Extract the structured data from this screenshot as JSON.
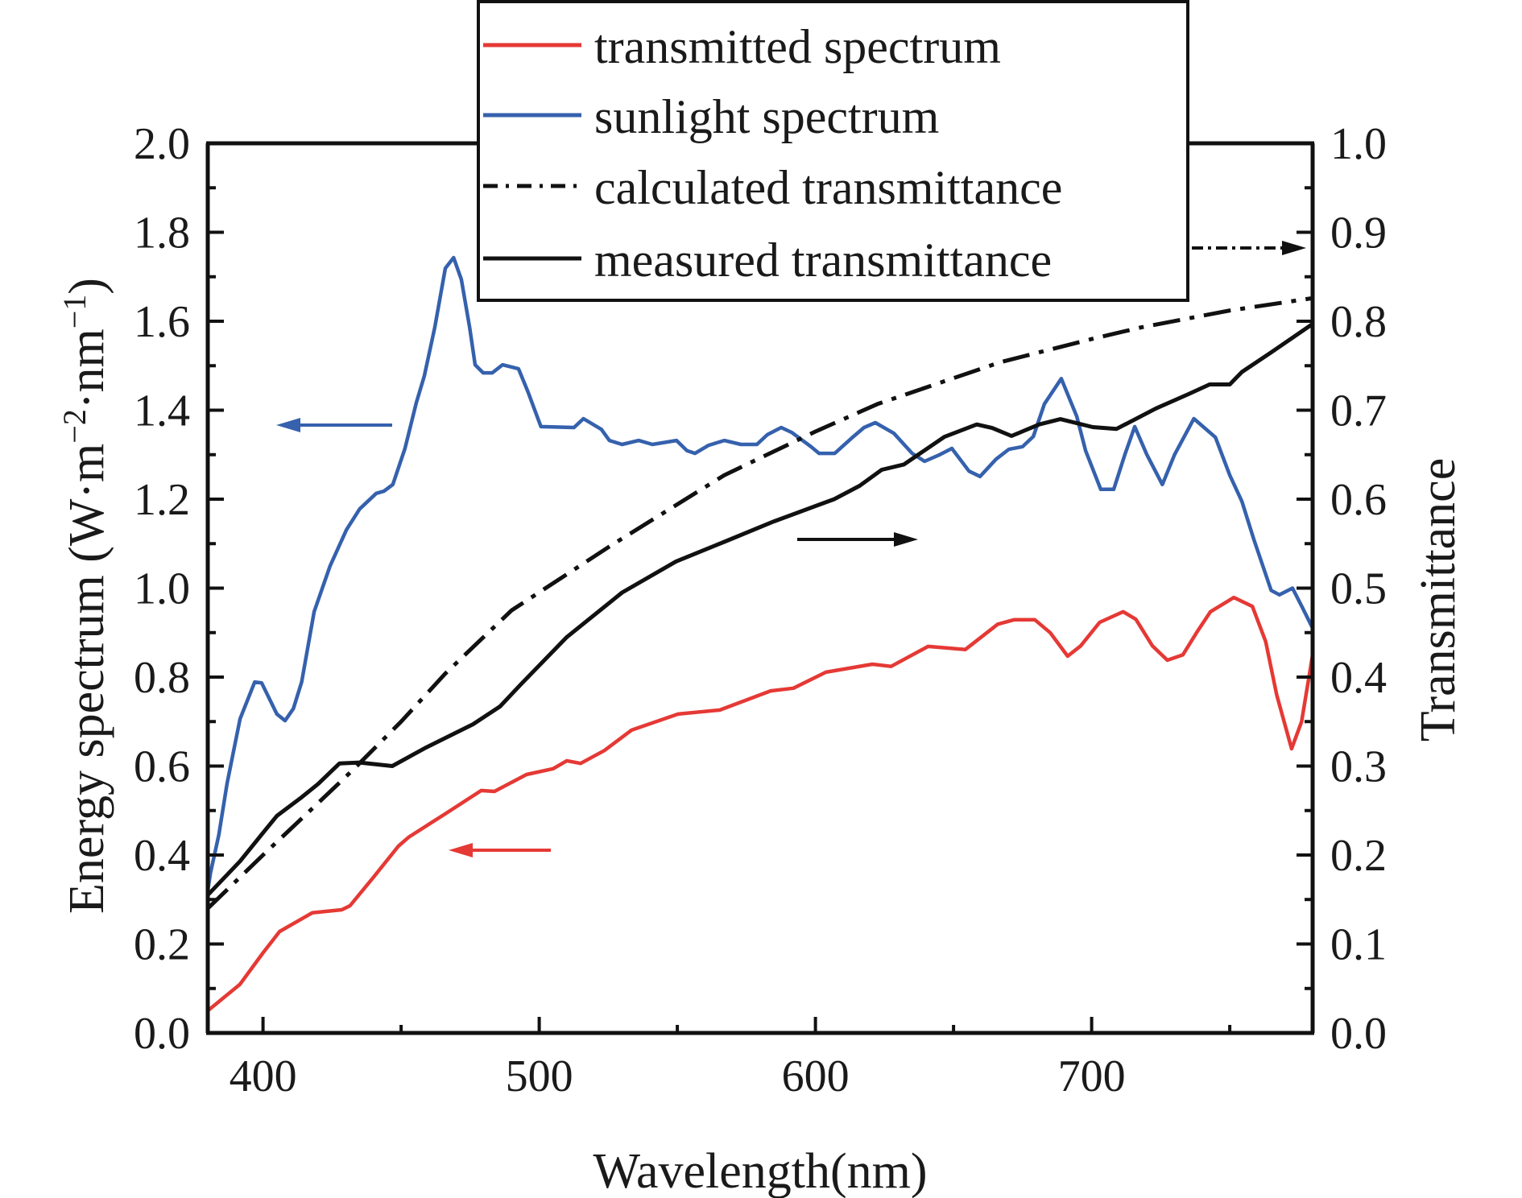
{
  "chart_data": {
    "type": "line",
    "title": "",
    "xlabel": "Wavelength(nm)",
    "ylabel_left": {
      "main": "Energy spectrum (W·m",
      "sup1": "−2",
      "mid": "·nm",
      "sup2": "−1",
      "end": ")"
    },
    "ylabel_right": "Transmittance",
    "xlim": [
      380,
      780
    ],
    "ylim_left": [
      0.0,
      2.0
    ],
    "ylim_right": [
      0.0,
      1.0
    ],
    "x_ticks": [
      400,
      500,
      600,
      700
    ],
    "x_minor_ticks": [
      450,
      550,
      650,
      750
    ],
    "y_left_ticks": [
      "0.0",
      "0.2",
      "0.4",
      "0.6",
      "0.8",
      "1.0",
      "1.2",
      "1.4",
      "1.6",
      "1.8",
      "2.0"
    ],
    "y_right_ticks": [
      "0.0",
      "0.1",
      "0.2",
      "0.3",
      "0.4",
      "0.5",
      "0.6",
      "0.7",
      "0.8",
      "0.9",
      "1.0"
    ],
    "grid": false,
    "legend_position": "top-center",
    "legend": [
      {
        "label": "transmitted spectrum",
        "color": "#e53935",
        "style": "solid"
      },
      {
        "label": "sunlight spectrum",
        "color": "#3561ad",
        "style": "solid"
      },
      {
        "label": "calculated transmittance",
        "color": "#111111",
        "style": "dash-dot"
      },
      {
        "label": "measured transmittance",
        "color": "#111111",
        "style": "solid"
      }
    ],
    "series": [
      {
        "name": "transmitted spectrum",
        "axis": "left",
        "color": "#e53935",
        "style": "solid",
        "points": [
          [
            380,
            0.05
          ],
          [
            391.6,
            0.109
          ],
          [
            400,
            0.18
          ],
          [
            406,
            0.228
          ],
          [
            417.8,
            0.27
          ],
          [
            428.5,
            0.277
          ],
          [
            431.5,
            0.286
          ],
          [
            440,
            0.35
          ],
          [
            449,
            0.42
          ],
          [
            452.7,
            0.44
          ],
          [
            466.3,
            0.494
          ],
          [
            479,
            0.545
          ],
          [
            483.8,
            0.543
          ],
          [
            495.4,
            0.581
          ],
          [
            505,
            0.594
          ],
          [
            510,
            0.612
          ],
          [
            515,
            0.606
          ],
          [
            523.6,
            0.635
          ],
          [
            533.5,
            0.681
          ],
          [
            550.3,
            0.717
          ],
          [
            565.4,
            0.726
          ],
          [
            583.8,
            0.769
          ],
          [
            592,
            0.775
          ],
          [
            603.8,
            0.811
          ],
          [
            620.6,
            0.829
          ],
          [
            627.4,
            0.824
          ],
          [
            640.8,
            0.869
          ],
          [
            654.3,
            0.862
          ],
          [
            666,
            0.919
          ],
          [
            672,
            0.929
          ],
          [
            679.4,
            0.929
          ],
          [
            685,
            0.9
          ],
          [
            691.3,
            0.847
          ],
          [
            696,
            0.87
          ],
          [
            702.9,
            0.923
          ],
          [
            711.4,
            0.947
          ],
          [
            716,
            0.93
          ],
          [
            722,
            0.87
          ],
          [
            727.4,
            0.838
          ],
          [
            733,
            0.85
          ],
          [
            738,
            0.9
          ],
          [
            743,
            0.947
          ],
          [
            751.5,
            0.979
          ],
          [
            758.2,
            0.959
          ],
          [
            763,
            0.88
          ],
          [
            767,
            0.76
          ],
          [
            772.4,
            0.639
          ],
          [
            776,
            0.7
          ],
          [
            780,
            0.85
          ]
        ]
      },
      {
        "name": "sunlight spectrum",
        "axis": "left",
        "color": "#3561ad",
        "style": "solid",
        "points": [
          [
            380,
            0.32
          ],
          [
            381,
            0.36
          ],
          [
            384,
            0.445
          ],
          [
            387,
            0.561
          ],
          [
            391.7,
            0.706
          ],
          [
            397,
            0.789
          ],
          [
            399.5,
            0.787
          ],
          [
            405,
            0.717
          ],
          [
            408,
            0.702
          ],
          [
            411,
            0.729
          ],
          [
            414,
            0.789
          ],
          [
            418.5,
            0.947
          ],
          [
            424.3,
            1.05
          ],
          [
            430.2,
            1.131
          ],
          [
            435,
            1.178
          ],
          [
            441,
            1.213
          ],
          [
            443.8,
            1.218
          ],
          [
            447,
            1.233
          ],
          [
            451.4,
            1.314
          ],
          [
            455.5,
            1.417
          ],
          [
            458.4,
            1.477
          ],
          [
            462.2,
            1.586
          ],
          [
            466,
            1.719
          ],
          [
            469,
            1.743
          ],
          [
            471.8,
            1.694
          ],
          [
            474.8,
            1.586
          ],
          [
            476.8,
            1.502
          ],
          [
            479.7,
            1.484
          ],
          [
            483,
            1.484
          ],
          [
            486.7,
            1.502
          ],
          [
            492.5,
            1.493
          ],
          [
            496,
            1.44
          ],
          [
            500.6,
            1.363
          ],
          [
            512.6,
            1.361
          ],
          [
            516,
            1.381
          ],
          [
            522.5,
            1.357
          ],
          [
            525.4,
            1.332
          ],
          [
            530,
            1.323
          ],
          [
            536,
            1.332
          ],
          [
            541,
            1.323
          ],
          [
            549.7,
            1.332
          ],
          [
            553.5,
            1.309
          ],
          [
            556.4,
            1.303
          ],
          [
            561.3,
            1.321
          ],
          [
            567,
            1.332
          ],
          [
            573,
            1.323
          ],
          [
            578.8,
            1.323
          ],
          [
            582.6,
            1.345
          ],
          [
            587.6,
            1.361
          ],
          [
            591.4,
            1.35
          ],
          [
            598.4,
            1.318
          ],
          [
            601.3,
            1.303
          ],
          [
            607,
            1.303
          ],
          [
            613.8,
            1.341
          ],
          [
            617.6,
            1.361
          ],
          [
            621.7,
            1.372
          ],
          [
            628.4,
            1.348
          ],
          [
            635,
            1.303
          ],
          [
            639.5,
            1.285
          ],
          [
            645,
            1.3
          ],
          [
            649.4,
            1.314
          ],
          [
            655.6,
            1.263
          ],
          [
            659.6,
            1.251
          ],
          [
            665.4,
            1.29
          ],
          [
            670,
            1.312
          ],
          [
            675,
            1.318
          ],
          [
            678.9,
            1.341
          ],
          [
            682.9,
            1.414
          ],
          [
            689,
            1.471
          ],
          [
            694.6,
            1.386
          ],
          [
            697.8,
            1.309
          ],
          [
            703.3,
            1.222
          ],
          [
            708,
            1.222
          ],
          [
            712,
            1.3
          ],
          [
            715.6,
            1.363
          ],
          [
            720,
            1.3
          ],
          [
            725.6,
            1.233
          ],
          [
            730,
            1.3
          ],
          [
            737,
            1.381
          ],
          [
            744.8,
            1.339
          ],
          [
            750,
            1.254
          ],
          [
            754.4,
            1.195
          ],
          [
            758.7,
            1.11
          ],
          [
            765,
            0.995
          ],
          [
            768,
            0.985
          ],
          [
            772.7,
            1.0
          ],
          [
            776,
            0.96
          ],
          [
            780,
            0.91
          ]
        ]
      },
      {
        "name": "calculated transmittance",
        "axis": "right",
        "color": "#111111",
        "style": "dash-dot",
        "points": [
          [
            380,
            0.14
          ],
          [
            400,
            0.2
          ],
          [
            414,
            0.241
          ],
          [
            432,
            0.294
          ],
          [
            450,
            0.35
          ],
          [
            466,
            0.404
          ],
          [
            490,
            0.475
          ],
          [
            526,
            0.548
          ],
          [
            567,
            0.627
          ],
          [
            600,
            0.676
          ],
          [
            622.5,
            0.707
          ],
          [
            667,
            0.754
          ],
          [
            700,
            0.78
          ],
          [
            717.8,
            0.793
          ],
          [
            750,
            0.812
          ],
          [
            780,
            0.826
          ]
        ]
      },
      {
        "name": "measured transmittance",
        "axis": "right",
        "color": "#111111",
        "style": "solid",
        "points": [
          [
            380,
            0.155
          ],
          [
            391.7,
            0.193
          ],
          [
            400,
            0.225
          ],
          [
            405,
            0.244
          ],
          [
            414,
            0.265
          ],
          [
            420,
            0.28
          ],
          [
            427.7,
            0.303
          ],
          [
            435,
            0.304
          ],
          [
            446.8,
            0.3
          ],
          [
            458.5,
            0.32
          ],
          [
            476,
            0.347
          ],
          [
            485.8,
            0.367
          ],
          [
            493.4,
            0.392
          ],
          [
            510,
            0.445
          ],
          [
            530,
            0.495
          ],
          [
            549.5,
            0.53
          ],
          [
            567,
            0.552
          ],
          [
            585,
            0.575
          ],
          [
            606.8,
            0.6
          ],
          [
            616,
            0.615
          ],
          [
            624,
            0.633
          ],
          [
            632,
            0.639
          ],
          [
            646.7,
            0.67
          ],
          [
            658.4,
            0.684
          ],
          [
            664,
            0.68
          ],
          [
            671,
            0.671
          ],
          [
            681,
            0.684
          ],
          [
            688.7,
            0.69
          ],
          [
            700.4,
            0.681
          ],
          [
            709,
            0.679
          ],
          [
            723.3,
            0.702
          ],
          [
            735,
            0.718
          ],
          [
            742.7,
            0.729
          ],
          [
            750,
            0.729
          ],
          [
            754.4,
            0.743
          ],
          [
            765,
            0.765
          ],
          [
            780,
            0.797
          ]
        ]
      }
    ],
    "annotations": [
      {
        "type": "arrow",
        "direction": "left",
        "color": "#3561ad",
        "meaning": "sunlight spectrum uses left axis"
      },
      {
        "type": "arrow",
        "direction": "left",
        "color": "#e53935",
        "meaning": "transmitted spectrum uses left axis"
      },
      {
        "type": "arrow",
        "direction": "right",
        "color": "#111111",
        "style": "solid",
        "meaning": "measured transmittance uses right axis"
      },
      {
        "type": "arrow",
        "direction": "right",
        "color": "#111111",
        "style": "dash-dot",
        "meaning": "calculated transmittance uses right axis"
      }
    ]
  }
}
